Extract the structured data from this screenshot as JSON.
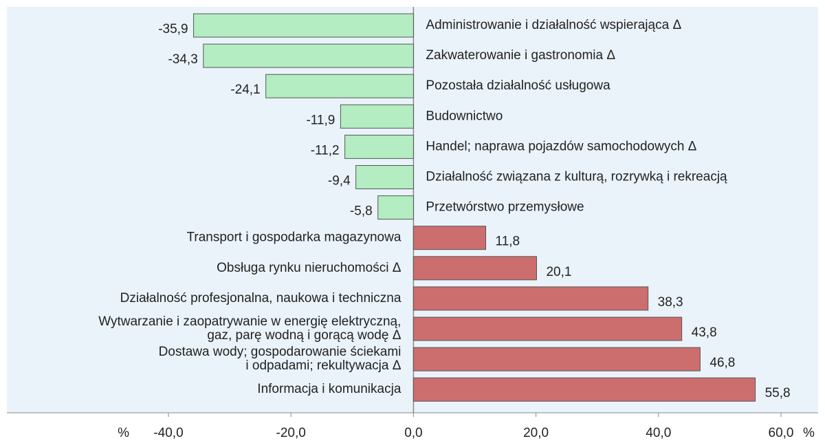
{
  "chart_data": {
    "type": "hbar",
    "categories": [
      "Administrowanie i działalność wspierająca Δ",
      "Zakwaterowanie i gastronomia Δ",
      "Pozostała działalność usługowa",
      "Budownictwo",
      "Handel; naprawa pojazdów samochodowych Δ",
      "Działalność związana z kulturą, rozrywką i rekreacją",
      "Przetwórstwo przemysłowe",
      "Transport i gospodarka magazynowa",
      "Obsługa rynku nieruchomości Δ",
      "Działalność profesjonalna, naukowa i techniczna",
      "Wytwarzanie i zaopatrywanie w energię elektryczną,\ngaz, parę wodną i gorącą wodę Δ",
      "Dostawa wody; gospodarowanie ściekami\ni odpadami; rekultywacja Δ",
      "Informacja i komunikacja"
    ],
    "values": [
      -35.9,
      -34.3,
      -24.1,
      -11.9,
      -11.2,
      -9.4,
      -5.8,
      11.8,
      20.1,
      38.3,
      43.8,
      46.8,
      55.8
    ],
    "value_labels": [
      "-35,9",
      "-34,3",
      "-24,1",
      "-11,9",
      "-11,2",
      "-9,4",
      "-5,8",
      "11,8",
      "20,1",
      "38,3",
      "43,8",
      "46,8",
      "55,8"
    ],
    "color_negative": "#b3edc1",
    "color_positive": "#cc6e6e",
    "xlim": [
      -40,
      60
    ],
    "xticks": [
      {
        "value": -40,
        "label": "-40,0"
      },
      {
        "value": -20,
        "label": "-20,0"
      },
      {
        "value": 0,
        "label": "0,0"
      },
      {
        "value": 20,
        "label": "20,0"
      },
      {
        "value": 40,
        "label": "40,0"
      },
      {
        "value": 60,
        "label": "60,0"
      }
    ],
    "x_unit": "%"
  }
}
